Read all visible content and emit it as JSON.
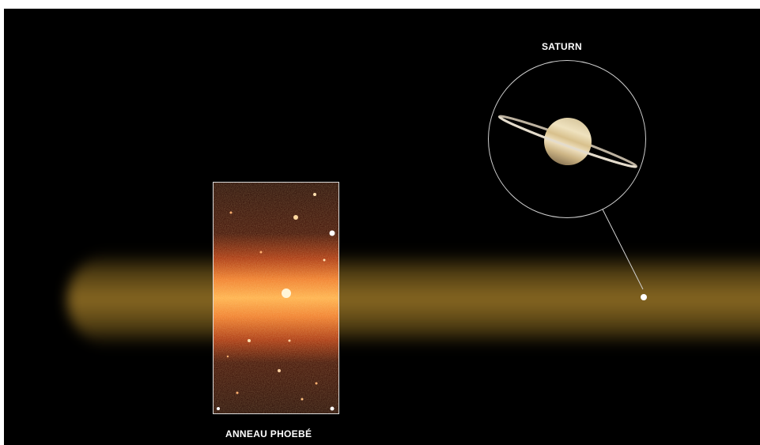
{
  "labels": {
    "saturn": "SATURN",
    "phoebe_ring": "ANNEAU PHOEBÉ"
  },
  "colors": {
    "background": "#000000",
    "ring_band": "#a07a28",
    "infrared_core": "#ffd27a",
    "infrared_edge": "#3a0800",
    "outline": "#dcdcdc"
  }
}
